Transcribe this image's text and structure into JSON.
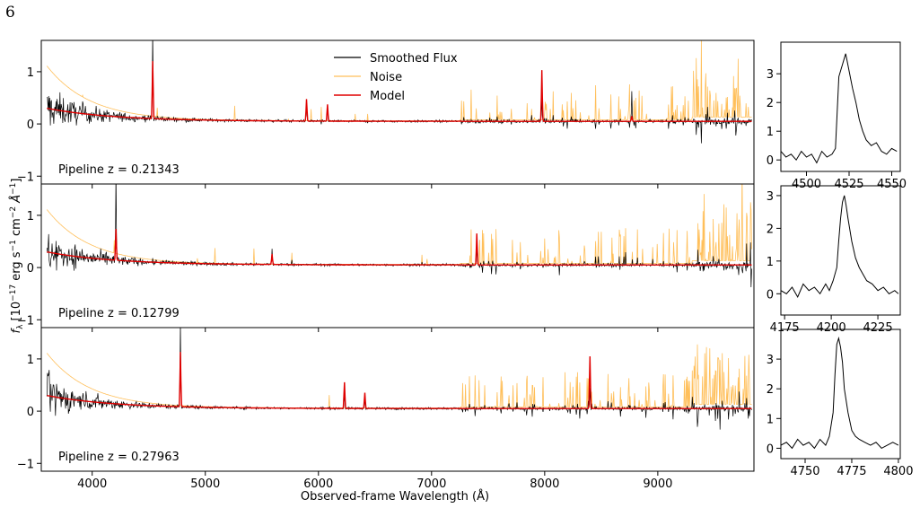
{
  "page": {
    "number": "6"
  },
  "colors": {
    "flux": "#000000",
    "noise": "#ffbf5a",
    "model": "#e00000"
  },
  "chart_data": {
    "type": "line",
    "xlabel": "Observed-frame Wavelength (Å)",
    "ylabel": "f_λ [10^{-17} erg s^{-1} cm^{-2} Å^{-1}]",
    "ylabel_parts": {
      "f": "f",
      "sub": "λ",
      "a": " [10",
      "e1": "−17",
      "b": " erg s",
      "e2": "−1",
      "c": " cm",
      "e3": "−2",
      "d": " Å",
      "e4": "−1",
      "e": "]"
    },
    "legend": {
      "placement": "top-center",
      "entries": [
        "Smoothed Flux",
        "Noise",
        "Model"
      ]
    },
    "xlim": [
      3550,
      9850
    ],
    "xticks": [
      4000,
      5000,
      6000,
      7000,
      8000,
      9000
    ],
    "ylim": [
      -1.15,
      1.6
    ],
    "yticks": [
      -1,
      0,
      1
    ],
    "ytick_labels": [
      "−1",
      "0",
      "1"
    ],
    "grid": false,
    "panels": [
      {
        "label": "Pipeline z = 0.21343",
        "redshift": 0.21343,
        "emission_lines": [
          {
            "wavelength": 4535,
            "flux_peak": 1.65,
            "model_peak": 1.1
          },
          {
            "wavelength": 5895,
            "flux_peak": 0.4,
            "model_peak": 0.42
          },
          {
            "wavelength": 6080,
            "flux_peak": 0.3,
            "model_peak": 0.32
          },
          {
            "wavelength": 7975,
            "flux_peak": 0.45,
            "model_peak": 0.98
          },
          {
            "wavelength": 8770,
            "flux_peak": 0.6,
            "model_peak": 0.1
          }
        ],
        "inset": {
          "xlim": [
            4485,
            4555
          ],
          "xticks": [
            4500,
            4525,
            4550
          ],
          "ylim": [
            -0.4,
            4.1
          ],
          "yticks": [
            0,
            1,
            2,
            3
          ],
          "x": [
            4485,
            4488,
            4491,
            4494,
            4497,
            4500,
            4503,
            4506,
            4509,
            4512,
            4515,
            4517,
            4519,
            4520,
            4521,
            4522,
            4523,
            4524,
            4525,
            4527,
            4529,
            4531,
            4533,
            4535,
            4538,
            4541,
            4544,
            4547,
            4550,
            4553
          ],
          "y": [
            0.3,
            0.1,
            0.2,
            0.0,
            0.3,
            0.1,
            0.2,
            -0.1,
            0.3,
            0.1,
            0.2,
            0.4,
            2.9,
            3.1,
            3.3,
            3.5,
            3.7,
            3.4,
            3.1,
            2.5,
            2.0,
            1.4,
            1.0,
            0.7,
            0.5,
            0.6,
            0.3,
            0.2,
            0.4,
            0.3
          ]
        }
      },
      {
        "label": "Pipeline z = 0.12799",
        "redshift": 0.12799,
        "emission_lines": [
          {
            "wavelength": 4210,
            "flux_peak": 1.7,
            "model_peak": 0.6
          },
          {
            "wavelength": 5590,
            "flux_peak": 0.3,
            "model_peak": 0.2
          },
          {
            "wavelength": 7400,
            "flux_peak": 0.35,
            "model_peak": 0.6
          }
        ],
        "inset": {
          "xlim": [
            4173,
            4237
          ],
          "xticks": [
            4175,
            4200,
            4225
          ],
          "ylim": [
            -0.65,
            3.3
          ],
          "yticks": [
            0,
            1,
            2,
            3
          ],
          "x": [
            4173,
            4176,
            4179,
            4182,
            4185,
            4188,
            4191,
            4194,
            4197,
            4199,
            4201,
            4203,
            4204,
            4205,
            4206,
            4207,
            4208,
            4209,
            4211,
            4213,
            4215,
            4217,
            4219,
            4222,
            4225,
            4228,
            4231,
            4234,
            4236
          ],
          "y": [
            0.1,
            0.0,
            0.2,
            -0.1,
            0.3,
            0.1,
            0.2,
            0.0,
            0.3,
            0.1,
            0.4,
            0.8,
            1.6,
            2.3,
            2.8,
            3.0,
            2.7,
            2.3,
            1.6,
            1.1,
            0.8,
            0.6,
            0.4,
            0.3,
            0.1,
            0.2,
            0.0,
            0.1,
            0.0
          ]
        }
      },
      {
        "label": "Pipeline z = 0.27963",
        "redshift": 0.27963,
        "emission_lines": [
          {
            "wavelength": 4780,
            "flux_peak": 1.65,
            "model_peak": 1.05
          },
          {
            "wavelength": 6230,
            "flux_peak": 0.3,
            "model_peak": 0.5
          },
          {
            "wavelength": 6410,
            "flux_peak": 0.2,
            "model_peak": 0.3
          },
          {
            "wavelength": 8400,
            "flux_peak": 0.4,
            "model_peak": 1.0
          }
        ],
        "inset": {
          "xlim": [
            4737,
            4801
          ],
          "xticks": [
            4750,
            4775,
            4800
          ],
          "ylim": [
            -0.35,
            4.0
          ],
          "yticks": [
            0,
            1,
            2,
            3
          ],
          "x": [
            4737,
            4740,
            4743,
            4746,
            4749,
            4752,
            4755,
            4758,
            4761,
            4763,
            4765,
            4766,
            4767,
            4768,
            4769,
            4770,
            4771,
            4773,
            4775,
            4777,
            4779,
            4782,
            4785,
            4788,
            4791,
            4794,
            4797,
            4800
          ],
          "y": [
            0.1,
            0.2,
            0.0,
            0.3,
            0.1,
            0.2,
            0.0,
            0.3,
            0.1,
            0.4,
            1.2,
            2.5,
            3.5,
            3.7,
            3.4,
            2.9,
            2.0,
            1.2,
            0.6,
            0.4,
            0.3,
            0.2,
            0.1,
            0.2,
            0.0,
            0.1,
            0.2,
            0.1
          ]
        }
      }
    ]
  }
}
